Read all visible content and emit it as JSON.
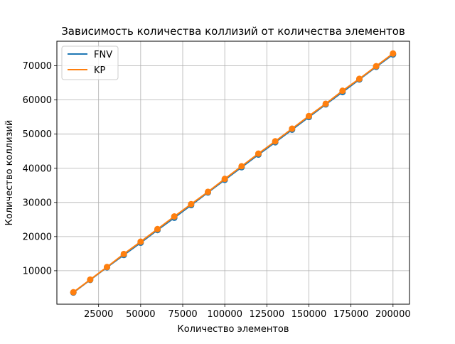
{
  "chart_data": {
    "type": "line",
    "title": "Зависимость количества коллизий от количества элементов",
    "xlabel": "Количество элементов",
    "ylabel": "Количество коллизий",
    "xlim": [
      200,
      209800
    ],
    "ylim": [
      200,
      77200
    ],
    "xticks": [
      25000,
      50000,
      75000,
      100000,
      125000,
      150000,
      175000,
      200000
    ],
    "yticks": [
      10000,
      20000,
      30000,
      40000,
      50000,
      60000,
      70000
    ],
    "grid": true,
    "legend_position": "top-left",
    "markers": "circle",
    "series": [
      {
        "name": "FNV",
        "color": "#1f77b4",
        "x": [
          10000,
          20000,
          30000,
          40000,
          50000,
          60000,
          70000,
          80000,
          90000,
          100000,
          110000,
          120000,
          130000,
          140000,
          150000,
          160000,
          170000,
          180000,
          190000,
          200000
        ],
        "y": [
          3600,
          7300,
          11000,
          14600,
          18200,
          21900,
          25500,
          29200,
          32900,
          36600,
          40300,
          44000,
          47600,
          51300,
          55000,
          58700,
          62300,
          66000,
          69700,
          73300
        ]
      },
      {
        "name": "KP",
        "color": "#ff7f0e",
        "x": [
          10000,
          20000,
          30000,
          40000,
          50000,
          60000,
          70000,
          80000,
          90000,
          100000,
          110000,
          120000,
          130000,
          140000,
          150000,
          160000,
          170000,
          180000,
          190000,
          200000
        ],
        "y": [
          3700,
          7400,
          11100,
          14900,
          18500,
          22200,
          25900,
          29500,
          33100,
          36900,
          40600,
          44300,
          47900,
          51600,
          55300,
          58900,
          62700,
          66200,
          69900,
          73600
        ]
      }
    ]
  }
}
